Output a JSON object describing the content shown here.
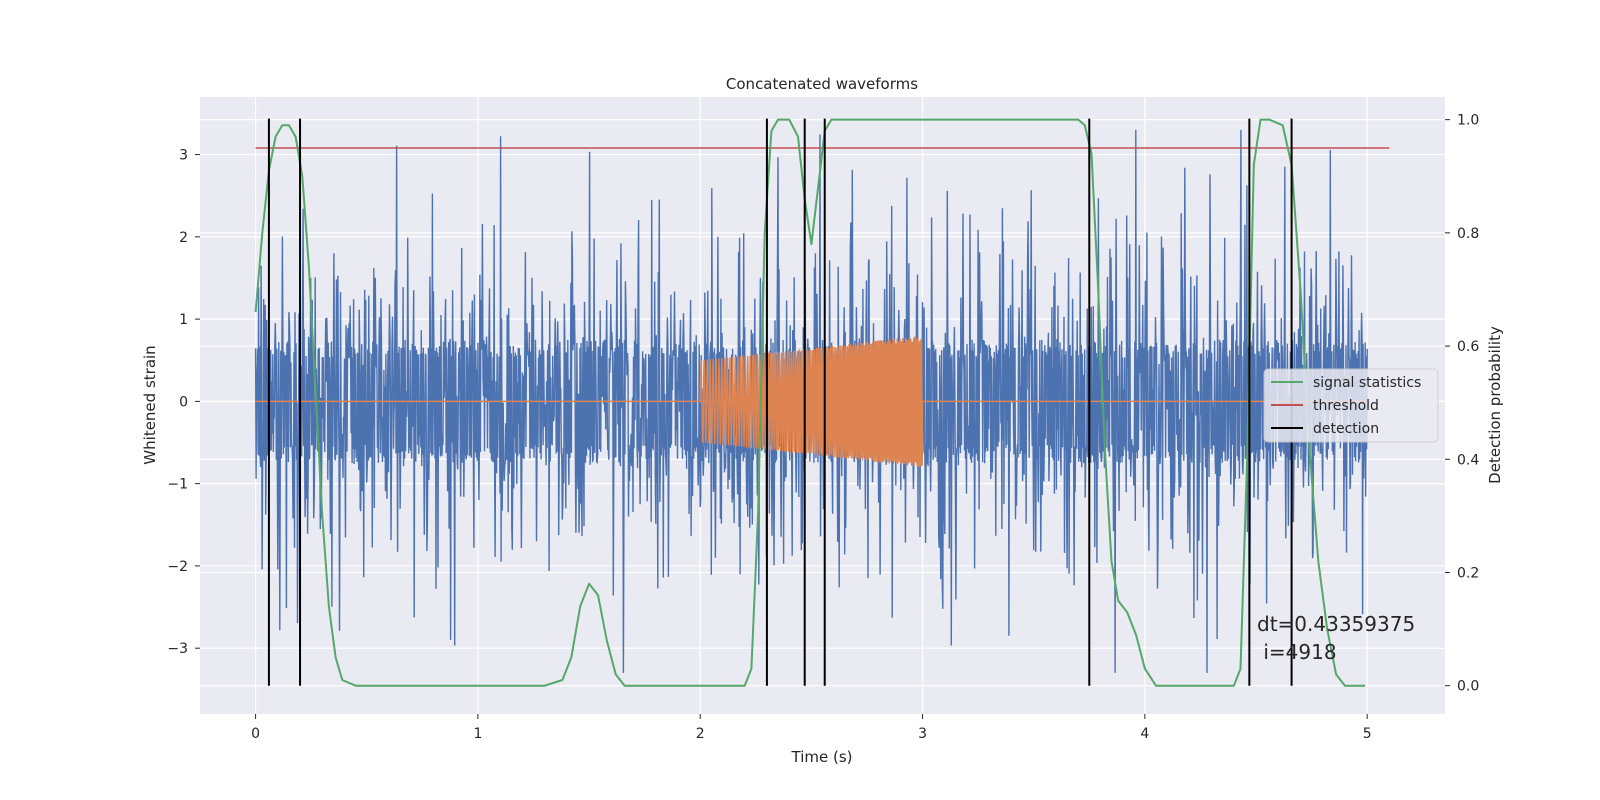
{
  "chart_data": {
    "type": "line",
    "title": "Concatenated waveforms",
    "xlabel": "Time (s)",
    "ylabel_left": "Whitened strain",
    "ylabel_right": "Detection probability",
    "xlim": [
      -0.25,
      5.35
    ],
    "ylim_left": [
      -3.8,
      3.7
    ],
    "ylim_right": [
      -0.05,
      1.04
    ],
    "x_ticks": [
      0,
      1,
      2,
      3,
      4,
      5
    ],
    "x_tick_labels": [
      "0",
      "1",
      "2",
      "3",
      "4",
      "5"
    ],
    "y_left_ticks": [
      -3,
      -2,
      -1,
      0,
      1,
      2,
      3
    ],
    "y_left_tick_labels": [
      "−3",
      "−2",
      "−1",
      "0",
      "1",
      "2",
      "3"
    ],
    "y_right_ticks": [
      0.0,
      0.2,
      0.4,
      0.6,
      0.8,
      1.0
    ],
    "y_right_tick_labels": [
      "0.0",
      "0.2",
      "0.4",
      "0.6",
      "0.8",
      "1.0"
    ],
    "grid": true,
    "legend_position": "center-right",
    "colors": {
      "background": "#EAEAF2",
      "grid": "#FFFFFF",
      "noise": "#4C72B0",
      "injection": "#DD8452",
      "signal_statistics": "#55A868",
      "threshold": "#C44E52",
      "detection": "#000000"
    },
    "series": [
      {
        "name": "signal statistics",
        "axis": "right",
        "x": [
          0.0,
          0.03,
          0.06,
          0.09,
          0.12,
          0.15,
          0.18,
          0.21,
          0.24,
          0.27,
          0.3,
          0.33,
          0.36,
          0.39,
          0.45,
          1.3,
          1.38,
          1.42,
          1.46,
          1.5,
          1.54,
          1.58,
          1.62,
          1.66,
          1.72,
          2.2,
          2.23,
          2.26,
          2.29,
          2.32,
          2.35,
          2.4,
          2.44,
          2.47,
          2.5,
          2.53,
          2.56,
          2.59,
          2.62,
          2.66,
          3.7,
          3.73,
          3.76,
          3.79,
          3.82,
          3.85,
          3.88,
          3.92,
          3.96,
          4.0,
          4.05,
          4.4,
          4.43,
          4.46,
          4.49,
          4.52,
          4.56,
          4.62,
          4.66,
          4.7,
          4.74,
          4.78,
          4.82,
          4.86,
          4.9,
          4.99
        ],
        "y": [
          0.66,
          0.8,
          0.91,
          0.97,
          0.99,
          0.99,
          0.97,
          0.9,
          0.74,
          0.52,
          0.3,
          0.14,
          0.05,
          0.01,
          0.0,
          0.0,
          0.01,
          0.05,
          0.14,
          0.18,
          0.16,
          0.08,
          0.02,
          0.0,
          0.0,
          0.0,
          0.03,
          0.3,
          0.8,
          0.98,
          1.0,
          1.0,
          0.97,
          0.86,
          0.78,
          0.88,
          0.98,
          1.0,
          1.0,
          1.0,
          1.0,
          0.99,
          0.94,
          0.7,
          0.42,
          0.22,
          0.15,
          0.13,
          0.09,
          0.03,
          0.0,
          0.0,
          0.03,
          0.4,
          0.92,
          1.0,
          1.0,
          0.99,
          0.92,
          0.7,
          0.42,
          0.22,
          0.1,
          0.02,
          0.0,
          0.0
        ]
      },
      {
        "name": "threshold",
        "axis": "right",
        "x": [
          0.0,
          5.1
        ],
        "y": [
          0.95,
          0.95
        ]
      },
      {
        "name": "detection",
        "axis": "right",
        "type": "vlines",
        "x": [
          0.06,
          0.2,
          2.3,
          2.47,
          2.56,
          3.75,
          4.47,
          4.66
        ],
        "ymin": 0.0,
        "ymax": 1.0
      },
      {
        "axis": "left",
        "type": "noise",
        "x_range": [
          0.0,
          5.0
        ],
        "core_amplitude": 0.75,
        "peak_max": 3.3
      },
      {
        "axis": "left",
        "type": "chirp",
        "x_range": [
          2.0,
          3.0
        ],
        "amplitude_start": 0.5,
        "amplitude_end": 0.8,
        "baseline": 0.0
      }
    ],
    "legend": [
      "signal statistics",
      "threshold",
      "detection"
    ],
    "annotation": {
      "dt": "dt=0.43359375",
      "i": " i=4918"
    }
  }
}
